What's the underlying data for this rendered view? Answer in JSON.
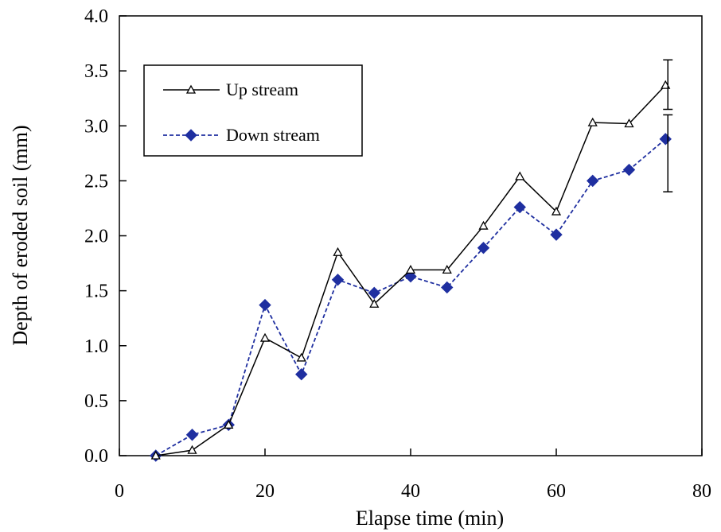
{
  "chart_data": {
    "type": "line",
    "title": "",
    "xlabel": "Elapse time (min)",
    "ylabel": "Depth of eroded soil (mm)",
    "xlim": [
      0,
      80
    ],
    "ylim": [
      0.0,
      4.0
    ],
    "x_ticks": [
      0,
      20,
      40,
      60,
      80
    ],
    "x_tick_labels": [
      "0",
      "20",
      "40",
      "60",
      "80"
    ],
    "y_ticks": [
      0.0,
      0.5,
      1.0,
      1.5,
      2.0,
      2.5,
      3.0,
      3.5,
      4.0
    ],
    "y_tick_labels": [
      "0.0",
      "0.5",
      "1.0",
      "1.5",
      "2.0",
      "2.5",
      "3.0",
      "3.5",
      "4.0"
    ],
    "grid": false,
    "legend_position": "top-left",
    "x": [
      5,
      10,
      15,
      20,
      25,
      30,
      35,
      40,
      45,
      50,
      55,
      60,
      65,
      70,
      75
    ],
    "series": [
      {
        "name": "Up stream",
        "values": [
          0.0,
          0.05,
          0.28,
          1.07,
          0.89,
          1.85,
          1.38,
          1.69,
          1.69,
          2.09,
          2.54,
          2.22,
          3.03,
          3.02,
          3.37
        ],
        "color": "#000000",
        "line_style": "solid",
        "marker": "open-triangle"
      },
      {
        "name": "Down stream",
        "values": [
          0.0,
          0.19,
          0.28,
          1.37,
          0.74,
          1.6,
          1.48,
          1.63,
          1.53,
          1.89,
          2.26,
          2.01,
          2.5,
          2.6,
          2.88
        ],
        "color": "#1f2fa0",
        "line_style": "dashed",
        "marker": "filled-diamond"
      }
    ],
    "error_bars": [
      {
        "series": "Up stream",
        "x": 75,
        "low": 3.15,
        "high": 3.6
      },
      {
        "series": "Down stream",
        "x": 75,
        "low": 2.4,
        "high": 3.1
      }
    ]
  }
}
